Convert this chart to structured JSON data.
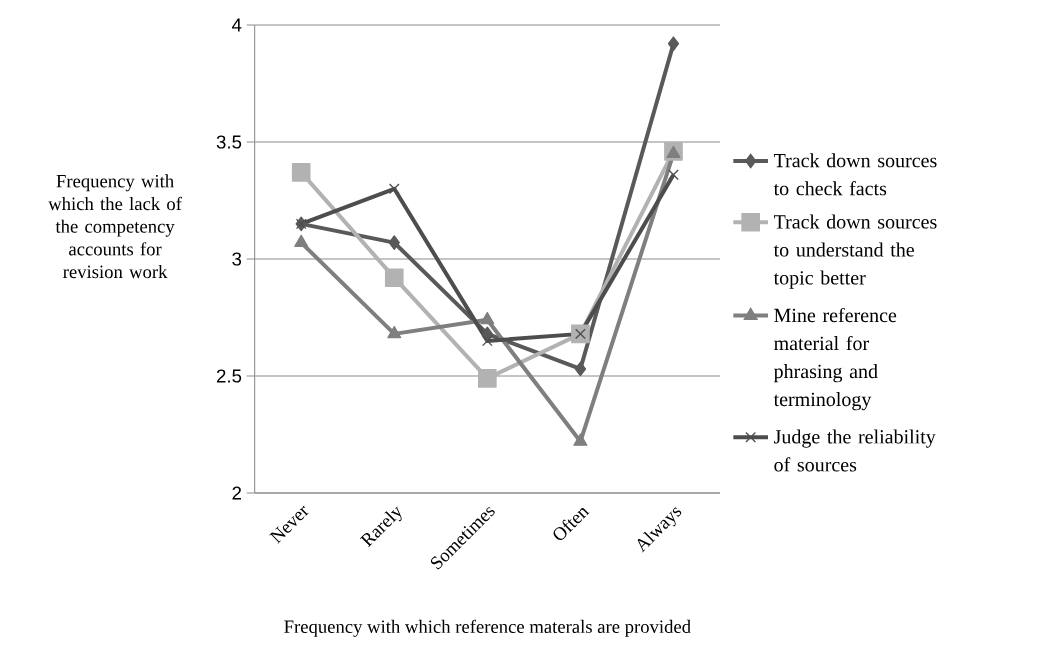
{
  "chart_data": {
    "type": "line",
    "xlabel": "Frequency with which reference materals are provided",
    "ylabel": "Frequency with which the lack of the competency accounts for revision work",
    "categories": [
      "Never",
      "Rarely",
      "Sometimes",
      "Often",
      "Always"
    ],
    "series": [
      {
        "name": "Track down sources to check facts",
        "color": "#595959",
        "marker": "diamond",
        "values": [
          3.15,
          3.07,
          2.68,
          2.53,
          3.92
        ]
      },
      {
        "name": "Track down sources to understand the topic better",
        "color": "#b2b2b2",
        "marker": "square",
        "values": [
          3.37,
          2.92,
          2.49,
          2.68,
          3.46
        ]
      },
      {
        "name": "Mine reference material for phrasing and terminology",
        "color": "#7f7f7f",
        "marker": "triangle",
        "values": [
          3.07,
          2.68,
          2.74,
          2.22,
          3.45
        ]
      },
      {
        "name": "Judge the reliability of sources",
        "color": "#4d4d4d",
        "marker": "cross",
        "values": [
          3.15,
          3.3,
          2.65,
          2.68,
          3.36
        ]
      }
    ],
    "ylim": [
      2,
      4
    ],
    "yticks": [
      2,
      2.5,
      3,
      3.5,
      4
    ],
    "grid": "y",
    "legend": "right"
  }
}
